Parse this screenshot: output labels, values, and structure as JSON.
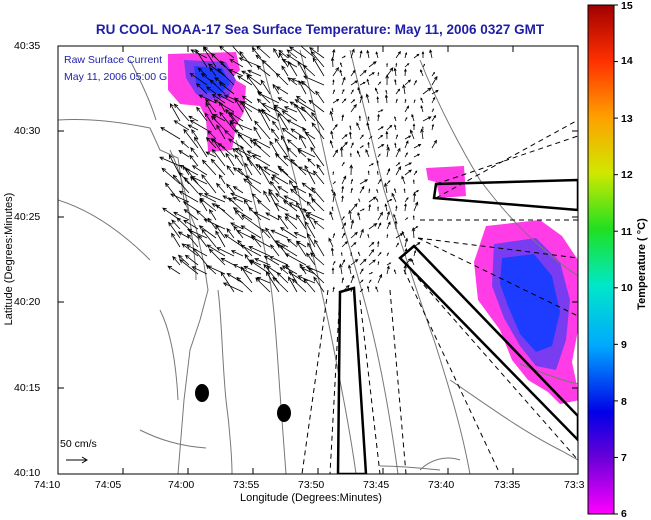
{
  "title": "RU COOL  NOAA-17  Sea Surface Temperature:  May 11, 2006 0327 GMT",
  "legend": {
    "line1": "Raw Surface Current",
    "line2": "May 11, 2006 05:00 G"
  },
  "scale": {
    "label": "50 cm/s"
  },
  "axes": {
    "xlabel": "Longitude (Degrees:Minutes)",
    "ylabel": "Latitude (Degrees:Minutes)",
    "xticks": [
      "74:10",
      "74:05",
      "74:00",
      "73:55",
      "73:50",
      "73:45",
      "73:40",
      "73:35",
      "73:3"
    ],
    "yticks": [
      "40:35",
      "40:30",
      "40:25",
      "40:20",
      "40:15",
      "40:10"
    ]
  },
  "colorbar": {
    "label": "Temperature ( °C)",
    "ticks": [
      "15",
      "14",
      "13",
      "12",
      "11",
      "10",
      "9",
      "8",
      "7",
      "6"
    ],
    "range": [
      6,
      15
    ]
  },
  "colors": {
    "title": "#1e1ea8",
    "sst_cold": "#1e3cff",
    "sst_mid": "#7a3cf0",
    "sst_warm": "#ff3ce6"
  }
}
